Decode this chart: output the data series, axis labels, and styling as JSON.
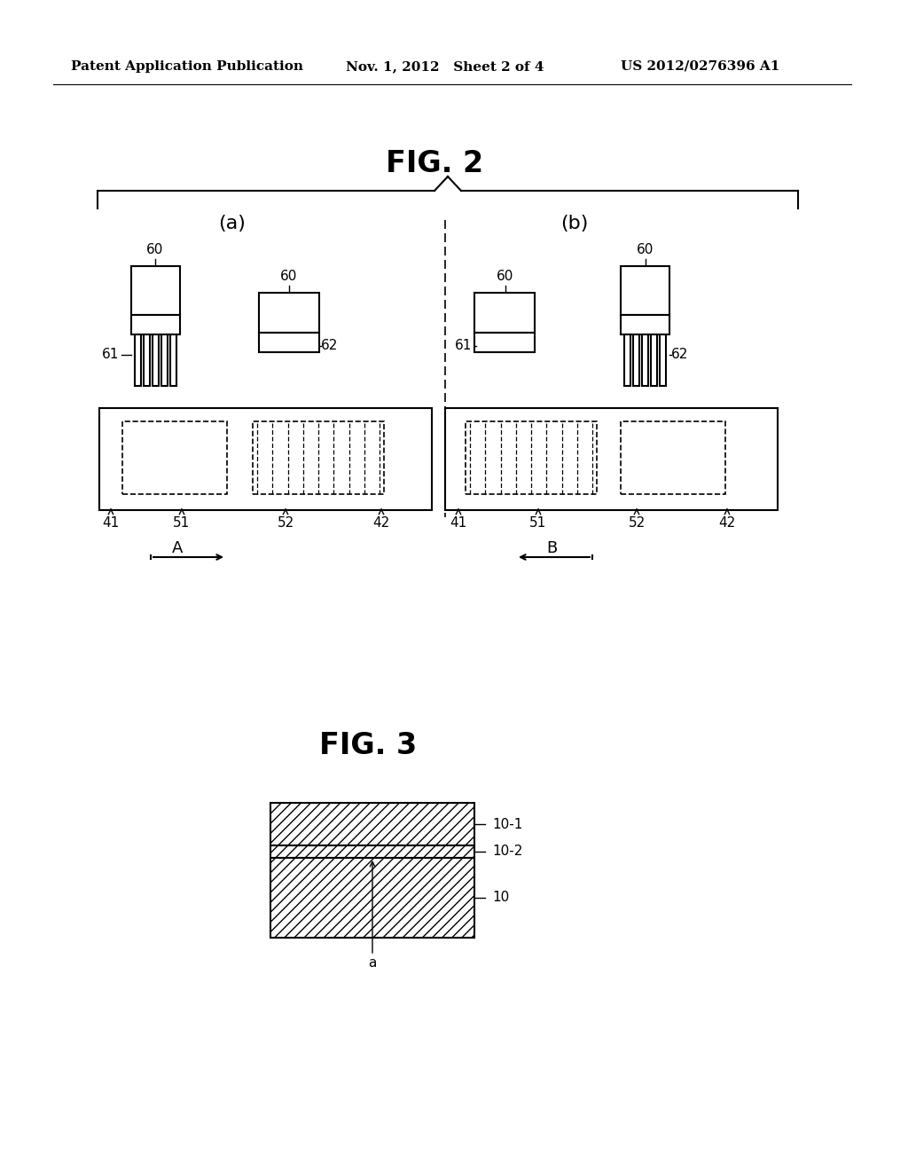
{
  "header_left": "Patent Application Publication",
  "header_mid": "Nov. 1, 2012   Sheet 2 of 4",
  "header_right": "US 2012/0276396 A1",
  "fig2_title": "FIG. 2",
  "fig3_title": "FIG. 3",
  "bg_color": "#ffffff",
  "line_color": "#000000",
  "fig2_label_a": "(a)",
  "fig2_label_b": "(b)",
  "arrow_a_label": "A",
  "arrow_b_label": "B",
  "labels_60": "60",
  "labels_61": "61",
  "labels_62": "62",
  "labels_41": "41",
  "labels_42": "42",
  "labels_51": "51",
  "labels_52": "52",
  "label_10": "10",
  "label_10_1": "10-1",
  "label_10_2": "10-2",
  "label_a": "a"
}
